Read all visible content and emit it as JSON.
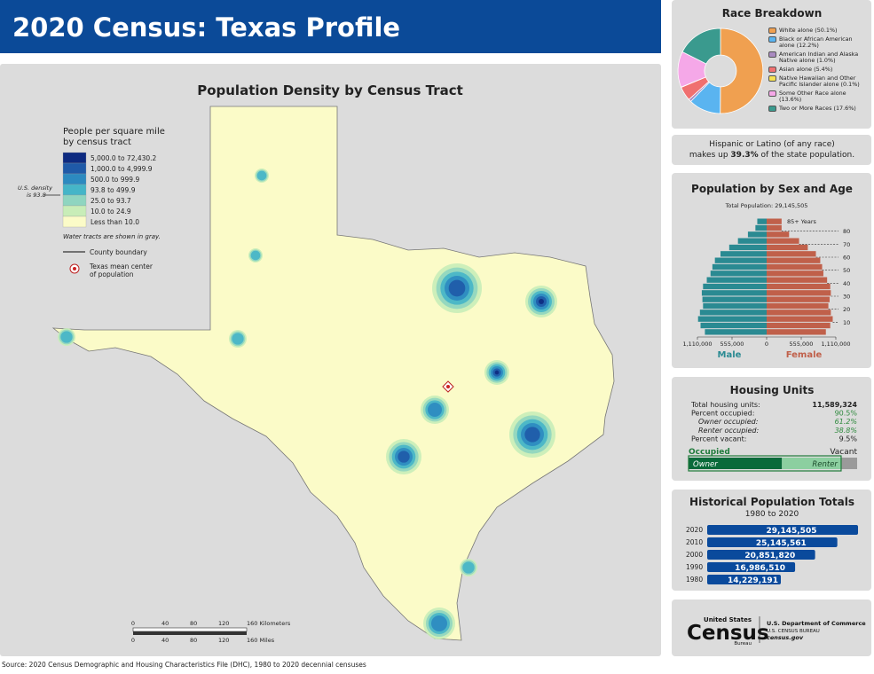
{
  "header": {
    "title": "2020 Census: Texas Profile"
  },
  "map": {
    "title": "Population Density by Census Tract",
    "legend_title": [
      "People per square mile",
      "by census tract"
    ],
    "legend": [
      {
        "label": "5,000.0 to 72,430.2",
        "color": "#0d2a80"
      },
      {
        "label": "1,000.0 to 4,999.9",
        "color": "#1f5aa8"
      },
      {
        "label": "500.0 to 999.9",
        "color": "#2c8ac0"
      },
      {
        "label": "93.8 to 499.9",
        "color": "#45b5c8"
      },
      {
        "label": "25.0 to 93.7",
        "color": "#8fd5c0"
      },
      {
        "label": "10.0 to 24.9",
        "color": "#c8edb8"
      },
      {
        "label": "Less than 10.0",
        "color": "#fbfbc8"
      }
    ],
    "us_density": [
      "U.S. density",
      "is 93.8"
    ],
    "water_note": "Water tracts are shown in gray.",
    "county_boundary": "County boundary",
    "mean_center": [
      "Texas mean center",
      "of population"
    ],
    "scale_km": [
      "0",
      "40",
      "80",
      "120",
      "160 Kilometers"
    ],
    "scale_mi": [
      "0",
      "40",
      "80",
      "120",
      "160 Miles"
    ]
  },
  "race": {
    "chart_data": {
      "type": "pie",
      "title": "Race Breakdown",
      "categories": [
        "White alone (50.1%)",
        "Black or African American alone (12.2%)",
        "American Indian and Alaska Native alone (1.0%)",
        "Asian alone (5.4%)",
        "Native Hawaiian and Other Pacific Islander alone (0.1%)",
        "Some Other Race alone (13.6%)",
        "Two or More Races (17.6%)"
      ],
      "values": [
        50.1,
        12.2,
        1.0,
        5.4,
        0.1,
        13.6,
        17.6
      ],
      "colors": [
        "#f0a050",
        "#5ab4f0",
        "#a98ac0",
        "#f07070",
        "#f5e050",
        "#f5a8e8",
        "#3a9a8e"
      ]
    }
  },
  "hispanic": {
    "line1": "Hispanic or Latino (of any race)",
    "before": "makes up",
    "value": "39.3%",
    "after": "of the state population."
  },
  "pyramid": {
    "chart_data": {
      "type": "pyramid",
      "title": "Population by Sex and Age",
      "subtitle": "Total Population: 29,145,505",
      "top_label": "85+ Years",
      "x": [
        0,
        5,
        10,
        15,
        20,
        25,
        30,
        35,
        40,
        45,
        50,
        55,
        60,
        65,
        70,
        75,
        80,
        85
      ],
      "series": [
        {
          "name": "Male",
          "color": "#2a8a92",
          "values": [
            990000,
            1060000,
            1100000,
            1070000,
            1020000,
            1030000,
            1040000,
            1020000,
            960000,
            900000,
            870000,
            830000,
            740000,
            600000,
            460000,
            300000,
            180000,
            150000
          ]
        },
        {
          "name": "Female",
          "color": "#c0604a",
          "values": [
            950000,
            1020000,
            1060000,
            1030000,
            990000,
            1010000,
            1030000,
            1020000,
            970000,
            910000,
            890000,
            860000,
            790000,
            660000,
            520000,
            360000,
            240000,
            240000
          ]
        }
      ],
      "ylim": [
        0,
        90
      ],
      "yticks": [
        10,
        20,
        30,
        40,
        50,
        60,
        70,
        80
      ],
      "xlim": [
        0,
        1110000
      ],
      "xticks": [
        0,
        {
          "value": 555000,
          "label": "555,000"
        },
        {
          "value": 1110000,
          "label": "1,110,000"
        }
      ]
    }
  },
  "housing": {
    "title": "Housing Units",
    "rows": [
      {
        "label": "Total housing units:",
        "value": 11589324,
        "value_label": "11,589,324"
      },
      {
        "label": "Percent occupied:",
        "value": 90.5,
        "value_label": "90.5%"
      },
      {
        "label": "Owner occupied:",
        "value": 61.2,
        "value_label": "61.2%"
      },
      {
        "label": "Renter occupied:",
        "value": 38.8,
        "value_label": "38.8%"
      },
      {
        "label": "Percent vacant:",
        "value": 9.5,
        "value_label": "9.5%"
      }
    ],
    "bar_labels": {
      "occupied": "Occupied",
      "vacant": "Vacant",
      "owner": "Owner",
      "renter": "Renter"
    }
  },
  "history": {
    "chart_data": {
      "type": "hbar",
      "title": "Historical Population Totals",
      "subtitle": "1980 to 2020",
      "color": "#0a4a9c",
      "categories": [
        "2020",
        "2010",
        "2000",
        "1990",
        "1980"
      ],
      "values": [
        29145505,
        25145561,
        20851820,
        16986510,
        14229191
      ],
      "value_labels": [
        "29,145,505",
        "25,145,561",
        "20,851,820",
        "16,986,510",
        "14,229,191"
      ]
    }
  },
  "logo": {
    "top": "United States",
    "main": "Census",
    "bureau": "Bureau",
    "dept": "U.S. Department of Commerce",
    "agency": "U.S. CENSUS BUREAU",
    "site": "census.gov"
  },
  "source": "Source: 2020 Census Demographic and Housing Characteristics File (DHC), 1980 to 2020 decennial censuses"
}
